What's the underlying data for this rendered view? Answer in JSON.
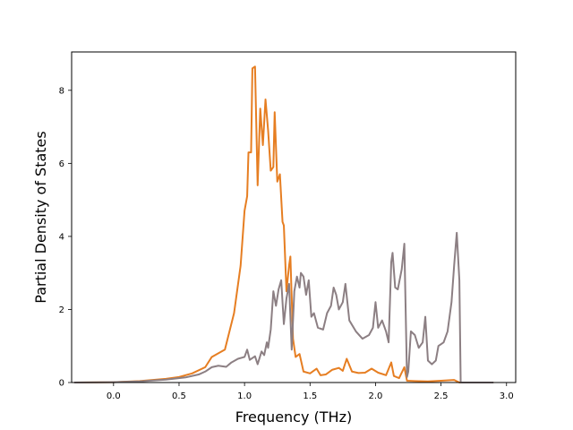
{
  "chart_data": {
    "type": "line",
    "title": "",
    "xlabel": "Frequency (THz)",
    "ylabel": "Partial Density of States",
    "xlim": [
      -0.32,
      3.07
    ],
    "ylim": [
      0,
      9.05
    ],
    "xticks": [
      0.0,
      0.5,
      1.0,
      1.5,
      2.0,
      2.5,
      3.0
    ],
    "xtick_labels": [
      "0.0",
      "0.5",
      "1.0",
      "1.5",
      "2.0",
      "2.5",
      "3.0"
    ],
    "yticks": [
      0,
      2,
      4,
      6,
      8
    ],
    "ytick_labels": [
      "0",
      "2",
      "4",
      "6",
      "8"
    ],
    "grid": false,
    "legend": null,
    "series": [
      {
        "color": "#e67e22",
        "points": [
          [
            -0.3,
            0.0
          ],
          [
            0.0,
            0.01
          ],
          [
            0.2,
            0.04
          ],
          [
            0.4,
            0.1
          ],
          [
            0.5,
            0.15
          ],
          [
            0.6,
            0.25
          ],
          [
            0.7,
            0.42
          ],
          [
            0.75,
            0.7
          ],
          [
            0.85,
            0.9
          ],
          [
            0.92,
            1.9
          ],
          [
            0.97,
            3.2
          ],
          [
            1.0,
            4.7
          ],
          [
            1.02,
            5.1
          ],
          [
            1.03,
            6.3
          ],
          [
            1.05,
            6.3
          ],
          [
            1.06,
            8.6
          ],
          [
            1.08,
            8.65
          ],
          [
            1.1,
            5.4
          ],
          [
            1.12,
            7.5
          ],
          [
            1.14,
            6.5
          ],
          [
            1.16,
            7.75
          ],
          [
            1.18,
            6.9
          ],
          [
            1.2,
            5.8
          ],
          [
            1.22,
            5.9
          ],
          [
            1.23,
            7.4
          ],
          [
            1.25,
            5.5
          ],
          [
            1.27,
            5.7
          ],
          [
            1.29,
            4.4
          ],
          [
            1.3,
            4.3
          ],
          [
            1.32,
            2.5
          ],
          [
            1.34,
            3.2
          ],
          [
            1.35,
            3.45
          ],
          [
            1.37,
            1.2
          ],
          [
            1.39,
            0.7
          ],
          [
            1.42,
            0.78
          ],
          [
            1.45,
            0.3
          ],
          [
            1.5,
            0.25
          ],
          [
            1.55,
            0.38
          ],
          [
            1.58,
            0.2
          ],
          [
            1.62,
            0.22
          ],
          [
            1.67,
            0.35
          ],
          [
            1.72,
            0.4
          ],
          [
            1.75,
            0.32
          ],
          [
            1.78,
            0.65
          ],
          [
            1.82,
            0.3
          ],
          [
            1.87,
            0.26
          ],
          [
            1.92,
            0.27
          ],
          [
            1.97,
            0.38
          ],
          [
            2.02,
            0.27
          ],
          [
            2.08,
            0.2
          ],
          [
            2.12,
            0.55
          ],
          [
            2.14,
            0.18
          ],
          [
            2.18,
            0.12
          ],
          [
            2.22,
            0.42
          ],
          [
            2.24,
            0.05
          ],
          [
            2.3,
            0.04
          ],
          [
            2.4,
            0.03
          ],
          [
            2.5,
            0.05
          ],
          [
            2.6,
            0.07
          ],
          [
            2.64,
            0.0
          ],
          [
            2.9,
            0.0
          ]
        ]
      },
      {
        "color": "#8c7f83",
        "points": [
          [
            -0.3,
            0.0
          ],
          [
            0.0,
            0.01
          ],
          [
            0.2,
            0.03
          ],
          [
            0.4,
            0.08
          ],
          [
            0.55,
            0.14
          ],
          [
            0.65,
            0.22
          ],
          [
            0.7,
            0.3
          ],
          [
            0.75,
            0.42
          ],
          [
            0.8,
            0.46
          ],
          [
            0.86,
            0.43
          ],
          [
            0.9,
            0.55
          ],
          [
            0.95,
            0.65
          ],
          [
            1.0,
            0.7
          ],
          [
            1.02,
            0.9
          ],
          [
            1.04,
            0.62
          ],
          [
            1.08,
            0.72
          ],
          [
            1.1,
            0.5
          ],
          [
            1.13,
            0.85
          ],
          [
            1.15,
            0.75
          ],
          [
            1.17,
            1.1
          ],
          [
            1.18,
            0.95
          ],
          [
            1.2,
            1.45
          ],
          [
            1.22,
            2.5
          ],
          [
            1.24,
            2.1
          ],
          [
            1.26,
            2.55
          ],
          [
            1.28,
            2.8
          ],
          [
            1.3,
            1.6
          ],
          [
            1.32,
            2.3
          ],
          [
            1.34,
            2.7
          ],
          [
            1.36,
            0.9
          ],
          [
            1.38,
            2.5
          ],
          [
            1.4,
            2.9
          ],
          [
            1.42,
            2.6
          ],
          [
            1.43,
            3.0
          ],
          [
            1.45,
            2.9
          ],
          [
            1.47,
            2.4
          ],
          [
            1.49,
            2.8
          ],
          [
            1.51,
            1.8
          ],
          [
            1.53,
            1.9
          ],
          [
            1.56,
            1.5
          ],
          [
            1.6,
            1.45
          ],
          [
            1.63,
            1.9
          ],
          [
            1.66,
            2.1
          ],
          [
            1.68,
            2.6
          ],
          [
            1.7,
            2.4
          ],
          [
            1.72,
            2.0
          ],
          [
            1.75,
            2.2
          ],
          [
            1.77,
            2.7
          ],
          [
            1.8,
            1.7
          ],
          [
            1.85,
            1.4
          ],
          [
            1.9,
            1.2
          ],
          [
            1.95,
            1.3
          ],
          [
            1.98,
            1.5
          ],
          [
            2.0,
            2.2
          ],
          [
            2.02,
            1.5
          ],
          [
            2.05,
            1.7
          ],
          [
            2.08,
            1.4
          ],
          [
            2.1,
            1.1
          ],
          [
            2.12,
            3.3
          ],
          [
            2.13,
            3.55
          ],
          [
            2.15,
            2.6
          ],
          [
            2.17,
            2.55
          ],
          [
            2.2,
            3.1
          ],
          [
            2.22,
            3.8
          ],
          [
            2.24,
            0.15
          ],
          [
            2.25,
            0.3
          ],
          [
            2.27,
            1.4
          ],
          [
            2.3,
            1.3
          ],
          [
            2.33,
            0.95
          ],
          [
            2.36,
            1.1
          ],
          [
            2.38,
            1.8
          ],
          [
            2.4,
            0.6
          ],
          [
            2.43,
            0.5
          ],
          [
            2.46,
            0.6
          ],
          [
            2.48,
            1.0
          ],
          [
            2.52,
            1.1
          ],
          [
            2.55,
            1.4
          ],
          [
            2.58,
            2.2
          ],
          [
            2.6,
            3.2
          ],
          [
            2.62,
            4.1
          ],
          [
            2.64,
            2.8
          ],
          [
            2.65,
            0.0
          ],
          [
            2.9,
            0.0
          ]
        ]
      }
    ]
  }
}
